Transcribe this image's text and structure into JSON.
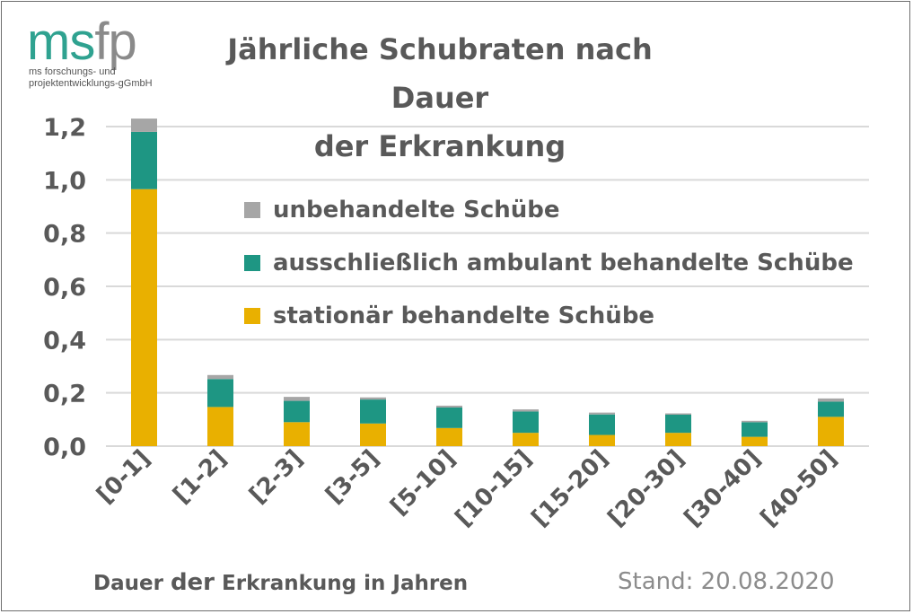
{
  "logo": {
    "ms": "ms",
    "fp": "fp",
    "sub_line1": "ms forschungs- und",
    "sub_line2": "projektentwicklungs-gGmbH"
  },
  "footer": {
    "stand": "Stand: 20.08.2020"
  },
  "chart_data": {
    "type": "bar",
    "stacked": true,
    "title_line1": "Jährliche Schubraten nach Dauer",
    "title_line2": "der Erkrankung",
    "xlabel_part1": "Dauer ",
    "xlabel_part2": "der",
    "xlabel_part3": " Erkrankung in Jahren",
    "ylabel": "",
    "ylim": [
      0,
      1.2
    ],
    "yticks": [
      "0,0",
      "0,2",
      "0,4",
      "0,6",
      "0,8",
      "1,0",
      "1,2"
    ],
    "grid": true,
    "legend_position": "center",
    "categories": [
      "[0-1]",
      "[1-2]",
      "[2-3]",
      "[3-5]",
      "[5-10]",
      "[10-15]",
      "[15-20]",
      "[20-30]",
      "[30-40]",
      "[40-50]"
    ],
    "series": [
      {
        "name": "stationär behandelte Schübe",
        "color": "#e9b000",
        "values": [
          0.965,
          0.147,
          0.09,
          0.085,
          0.068,
          0.05,
          0.042,
          0.05,
          0.035,
          0.11
        ]
      },
      {
        "name": "ausschließlich ambulant behandelte Schübe",
        "color": "#1e9683",
        "values": [
          0.215,
          0.105,
          0.08,
          0.09,
          0.077,
          0.08,
          0.077,
          0.068,
          0.055,
          0.057
        ]
      },
      {
        "name": "unbehandelte Schübe",
        "color": "#a6a6a6",
        "values": [
          0.05,
          0.015,
          0.015,
          0.008,
          0.007,
          0.008,
          0.007,
          0.005,
          0.005,
          0.012
        ]
      }
    ],
    "legend_order": [
      2,
      1,
      0
    ]
  }
}
